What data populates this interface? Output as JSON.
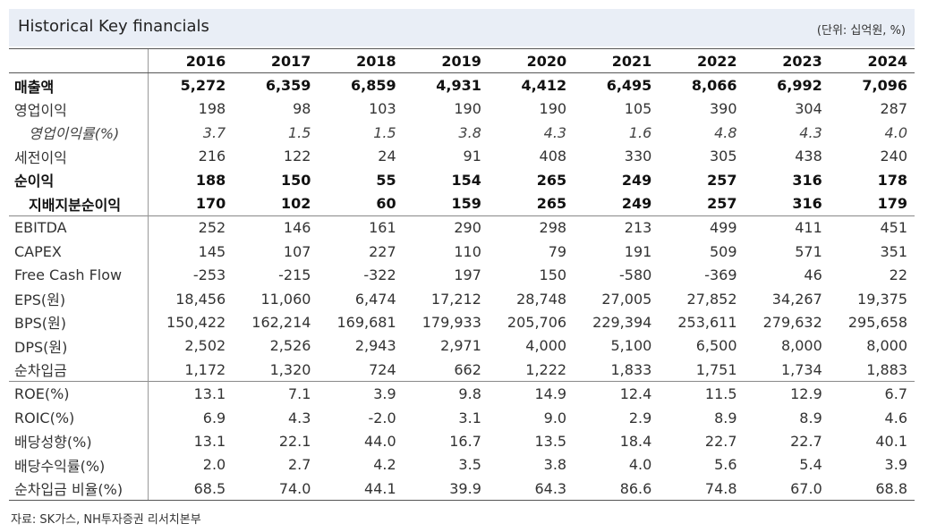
{
  "header": {
    "title": "Historical Key financials",
    "unit": "(단위: 십억원, %)"
  },
  "years": [
    "2016",
    "2017",
    "2018",
    "2019",
    "2020",
    "2021",
    "2022",
    "2023",
    "2024"
  ],
  "rows": [
    {
      "label": "매출액",
      "style": "bold",
      "values": [
        "5,272",
        "6,359",
        "6,859",
        "4,931",
        "4,412",
        "6,495",
        "8,066",
        "6,992",
        "7,096"
      ]
    },
    {
      "label": "영업이익",
      "style": "",
      "values": [
        "198",
        "98",
        "103",
        "190",
        "190",
        "105",
        "390",
        "304",
        "287"
      ]
    },
    {
      "label": "영업이익률(%)",
      "style": "italic indent",
      "values": [
        "3.7",
        "1.5",
        "1.5",
        "3.8",
        "4.3",
        "1.6",
        "4.8",
        "4.3",
        "4.0"
      ]
    },
    {
      "label": "세전이익",
      "style": "",
      "values": [
        "216",
        "122",
        "24",
        "91",
        "408",
        "330",
        "305",
        "438",
        "240"
      ]
    },
    {
      "label": "순이익",
      "style": "bold",
      "values": [
        "188",
        "150",
        "55",
        "154",
        "265",
        "249",
        "257",
        "316",
        "178"
      ]
    },
    {
      "label": "지배지분순이익",
      "style": "bold indent",
      "values": [
        "170",
        "102",
        "60",
        "159",
        "265",
        "249",
        "257",
        "316",
        "179"
      ]
    },
    {
      "label": "EBITDA",
      "style": "sep",
      "values": [
        "252",
        "146",
        "161",
        "290",
        "298",
        "213",
        "499",
        "411",
        "451"
      ]
    },
    {
      "label": "CAPEX",
      "style": "",
      "values": [
        "145",
        "107",
        "227",
        "110",
        "79",
        "191",
        "509",
        "571",
        "351"
      ]
    },
    {
      "label": "Free Cash Flow",
      "style": "",
      "values": [
        "-253",
        "-215",
        "-322",
        "197",
        "150",
        "-580",
        "-369",
        "46",
        "22"
      ]
    },
    {
      "label": "EPS(원)",
      "style": "",
      "values": [
        "18,456",
        "11,060",
        "6,474",
        "17,212",
        "28,748",
        "27,005",
        "27,852",
        "34,267",
        "19,375"
      ]
    },
    {
      "label": "BPS(원)",
      "style": "",
      "values": [
        "150,422",
        "162,214",
        "169,681",
        "179,933",
        "205,706",
        "229,394",
        "253,611",
        "279,632",
        "295,658"
      ]
    },
    {
      "label": "DPS(원)",
      "style": "",
      "values": [
        "2,502",
        "2,526",
        "2,943",
        "2,971",
        "4,000",
        "5,100",
        "6,500",
        "8,000",
        "8,000"
      ]
    },
    {
      "label": "순차입금",
      "style": "",
      "values": [
        "1,172",
        "1,320",
        "724",
        "662",
        "1,222",
        "1,833",
        "1,751",
        "1,734",
        "1,883"
      ]
    },
    {
      "label": "ROE(%)",
      "style": "sep",
      "values": [
        "13.1",
        "7.1",
        "3.9",
        "9.8",
        "14.9",
        "12.4",
        "11.5",
        "12.9",
        "6.7"
      ]
    },
    {
      "label": "ROIC(%)",
      "style": "",
      "values": [
        "6.9",
        "4.3",
        "-2.0",
        "3.1",
        "9.0",
        "2.9",
        "8.9",
        "8.9",
        "4.6"
      ]
    },
    {
      "label": "배당성향(%)",
      "style": "",
      "values": [
        "13.1",
        "22.1",
        "44.0",
        "16.7",
        "13.5",
        "18.4",
        "22.7",
        "22.7",
        "40.1"
      ]
    },
    {
      "label": "배당수익률(%)",
      "style": "",
      "values": [
        "2.0",
        "2.7",
        "4.2",
        "3.5",
        "3.8",
        "4.0",
        "5.6",
        "5.4",
        "3.9"
      ]
    },
    {
      "label": "순차입금 비율(%)",
      "style": "last",
      "values": [
        "68.5",
        "74.0",
        "44.1",
        "39.9",
        "64.3",
        "86.6",
        "74.8",
        "67.0",
        "68.8"
      ]
    }
  ],
  "source": "자료: SK가스, NH투자증권 리서치본부"
}
